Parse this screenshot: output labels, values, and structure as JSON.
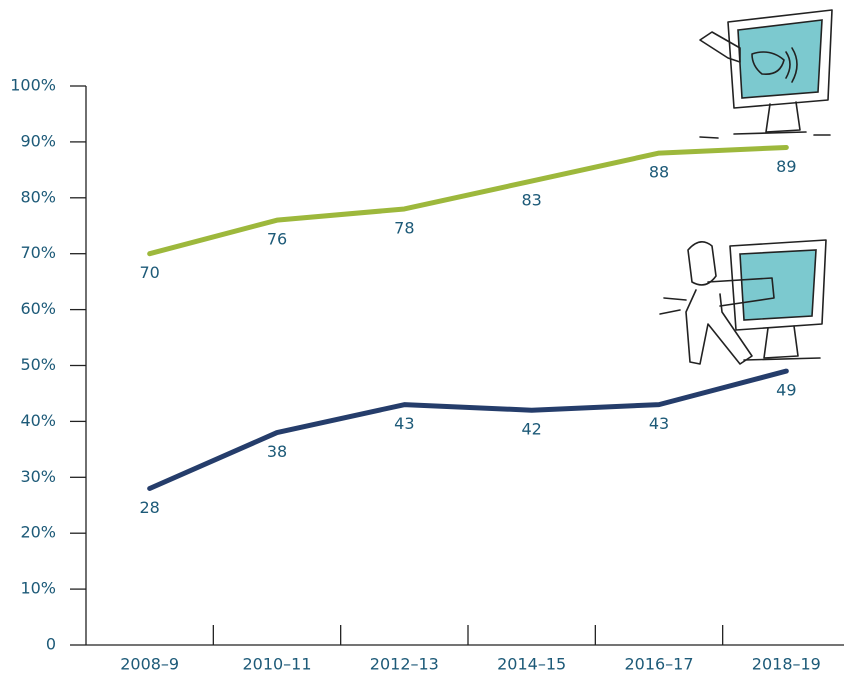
{
  "chart_data": {
    "type": "line",
    "categories": [
      "2008–9",
      "2010–11",
      "2012–13",
      "2014–15",
      "2016–17",
      "2018–19"
    ],
    "series": [
      {
        "color": "#9db83c",
        "values": [
          70,
          76,
          78,
          83,
          88,
          89
        ]
      },
      {
        "color": "#253d6b",
        "values": [
          28,
          38,
          43,
          42,
          43,
          49
        ]
      }
    ],
    "ylim": [
      0,
      100
    ],
    "yticks": [
      0,
      {
        "value": 10,
        "label": "10%"
      },
      {
        "value": 20,
        "label": "20%"
      },
      {
        "value": 30,
        "label": "30%"
      },
      {
        "value": 40,
        "label": "40%"
      },
      {
        "value": 50,
        "label": "50%"
      },
      {
        "value": 60,
        "label": "60%"
      },
      {
        "value": 70,
        "label": "70%"
      },
      {
        "value": 80,
        "label": "80%"
      },
      {
        "value": 90,
        "label": "90%"
      },
      {
        "value": 100,
        "label": "100%"
      }
    ]
  }
}
